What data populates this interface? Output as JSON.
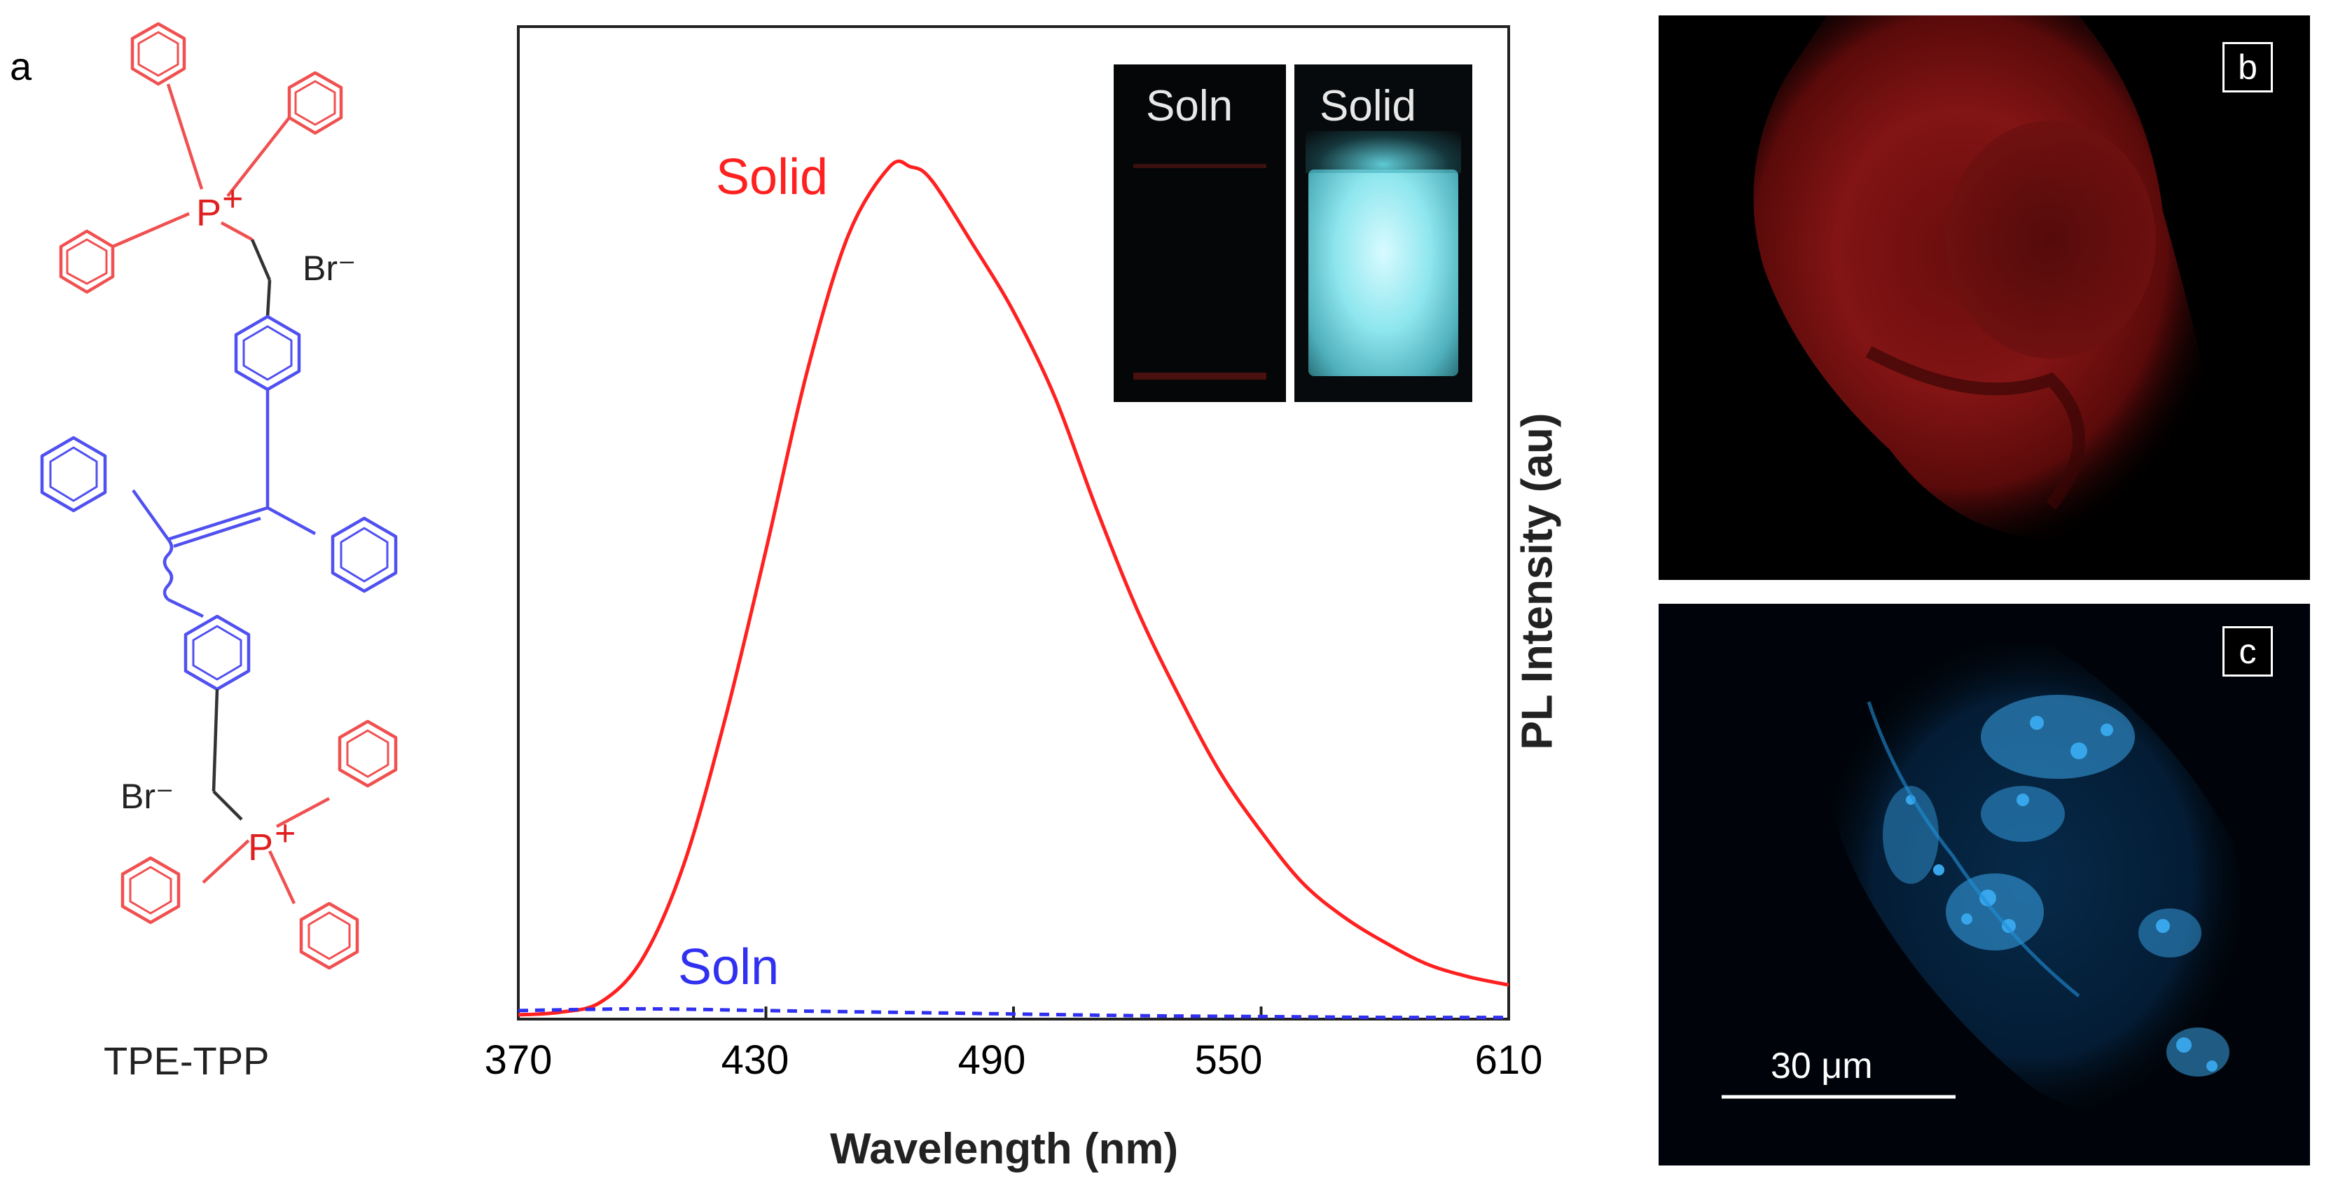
{
  "panels": {
    "a": "a",
    "b": "b",
    "c": "c"
  },
  "structure": {
    "compound_name": "TPE-TPP",
    "counterion": "Br⁻",
    "charge": "+",
    "phosphonium_atom": "P",
    "colors": {
      "tpp": "#f05050",
      "tpe": "#5050f0"
    }
  },
  "chart_data": {
    "type": "line",
    "title": "",
    "xlabel": "Wavelength (nm)",
    "ylabel": "PL Intensity (au)",
    "xlim": [
      370,
      610
    ],
    "ylim": [
      0,
      1.0
    ],
    "x_ticks": [
      "370",
      "430",
      "490",
      "550",
      "610"
    ],
    "series": [
      {
        "name": "Solid",
        "color": "#ff2020",
        "style": "solid",
        "x": [
          370,
          380,
          390,
          400,
          410,
          420,
          430,
          440,
          450,
          460,
          465,
          470,
          480,
          490,
          500,
          510,
          520,
          530,
          540,
          550,
          560,
          570,
          580,
          590,
          600,
          610
        ],
        "y": [
          0.005,
          0.008,
          0.02,
          0.07,
          0.18,
          0.35,
          0.55,
          0.76,
          0.92,
          1.0,
          1.0,
          0.985,
          0.91,
          0.83,
          0.73,
          0.6,
          0.48,
          0.38,
          0.29,
          0.22,
          0.16,
          0.12,
          0.09,
          0.065,
          0.05,
          0.04
        ]
      },
      {
        "name": "Soln",
        "color": "#3030f0",
        "style": "dashed",
        "x": [
          370,
          400,
          430,
          460,
          490,
          520,
          550,
          580,
          610
        ],
        "y": [
          0.01,
          0.012,
          0.01,
          0.008,
          0.006,
          0.004,
          0.003,
          0.002,
          0.002
        ]
      }
    ],
    "legend": "inline",
    "inset": {
      "labels": [
        "Soln",
        "Solid"
      ]
    }
  },
  "micrographs": {
    "b": {
      "description_color": "#b01818"
    },
    "c": {
      "scale_bar": "30 μm"
    }
  }
}
